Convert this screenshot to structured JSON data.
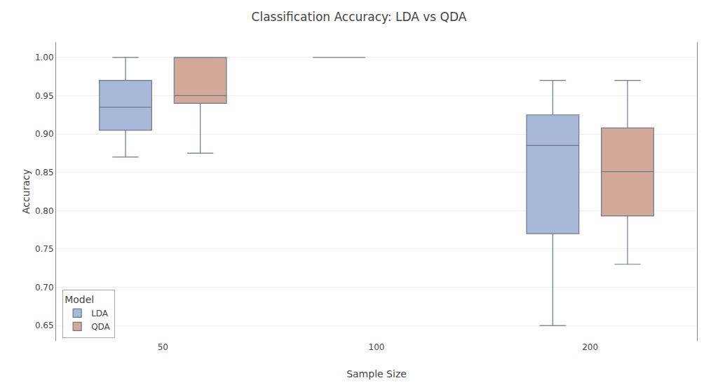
{
  "chart_data": {
    "type": "box",
    "title": "Classification Accuracy: LDA vs QDA",
    "x_label": "Sample Size",
    "y_label": "Accuracy",
    "categories": [
      "50",
      "100",
      "200"
    ],
    "series": [
      {
        "name": "LDA",
        "color": "#a8b8d8",
        "values": [
          {
            "whislo": 0.87,
            "q1": 0.905,
            "med": 0.935,
            "q3": 0.97,
            "whishi": 1.0
          },
          {
            "whislo": 1.0,
            "q1": 1.0,
            "med": 1.0,
            "q3": 1.0,
            "whishi": 1.0
          },
          {
            "whislo": 0.65,
            "q1": 0.77,
            "med": 0.885,
            "q3": 0.925,
            "whishi": 0.97
          }
        ]
      },
      {
        "name": "QDA",
        "color": "#d4a898",
        "values": [
          {
            "whislo": 0.875,
            "q1": 0.94,
            "med": 0.95,
            "q3": 1.0,
            "whishi": 1.0
          },
          null,
          {
            "whislo": 0.73,
            "q1": 0.793,
            "med": 0.851,
            "q3": 0.908,
            "whishi": 0.97
          }
        ]
      }
    ],
    "legend_title": "Model",
    "legend": "lower left",
    "grid": true,
    "ylim": [
      0.63,
      1.02
    ],
    "yticks": [
      0.65,
      {
        "value": 0.7,
        "label": "0.70"
      },
      0.75,
      {
        "value": 0.8,
        "label": "0.80"
      },
      0.85,
      {
        "value": 0.9,
        "label": "0.90"
      },
      0.95,
      {
        "value": 1.0,
        "label": "1.00"
      }
    ]
  }
}
